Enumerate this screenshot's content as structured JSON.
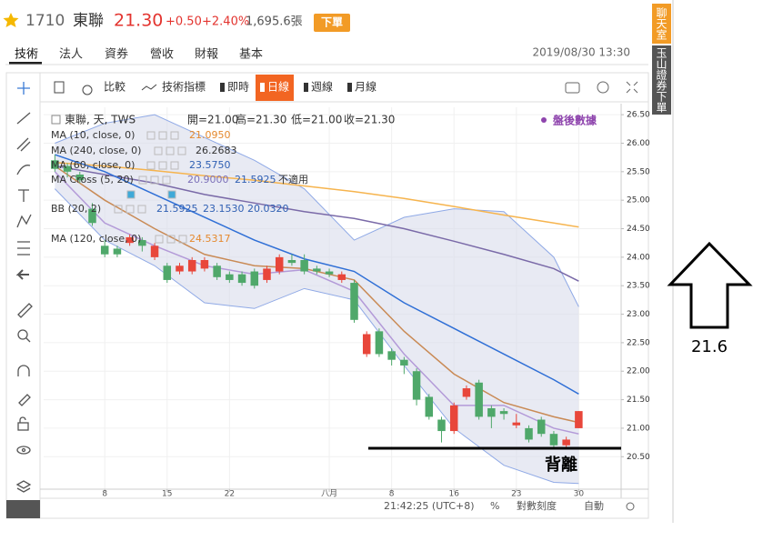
{
  "header": {
    "code": "1710",
    "name": "東聯",
    "price": "21.30",
    "change": "+0.50",
    "change_pct": "+2.40%",
    "volume": "1,695.6張",
    "order_button": "下單"
  },
  "tabs": [
    "技術",
    "法人",
    "資券",
    "營收",
    "財報",
    "基本"
  ],
  "timestamp": "2019/08/30 13:30",
  "toolbar": [
    "比較",
    "技術指標",
    "即時",
    "日線",
    "週線",
    "月線"
  ],
  "side_tabs": [
    "聊天室",
    "玉山證券下單"
  ],
  "status_bar": {
    "time": "21:42:25 (UTC+8)",
    "percent": "%",
    "log": "對數刻度",
    "auto": "自動"
  },
  "chart_data": {
    "type": "candlestick",
    "legend_title": "東聯, 天, TWS",
    "ohlc_labels": [
      "開=21.00",
      "高=21.30",
      "低=21.00",
      "收=21.30"
    ],
    "watermark": "盤後數據",
    "indicators": [
      {
        "label": "MA (10, close, 0)",
        "values": [
          "21.0950"
        ]
      },
      {
        "label": "MA (240, close, 0)",
        "values": [
          "26.2683"
        ]
      },
      {
        "label": "MA (60, close, 0)",
        "values": [
          "23.5750"
        ]
      },
      {
        "label": "MA Cross (5, 20)",
        "values": [
          "20.9000",
          "21.5925",
          "不適用"
        ]
      },
      {
        "label": "BB (20, 2)",
        "values": [
          "21.5925",
          "23.1530",
          "20.0320"
        ]
      },
      {
        "label": "MA (120, close, 0)",
        "values": [
          "24.5317"
        ]
      }
    ],
    "annotations": [
      "21.6",
      "背離"
    ],
    "up_color": "#e8463a",
    "down_color": "#4fa86a",
    "open": [
      25.7,
      25.6,
      25.45,
      24.85,
      24.2,
      24.15,
      24.25,
      24.3,
      24.0,
      23.85,
      23.75,
      23.75,
      23.8,
      23.85,
      23.7,
      23.7,
      23.75,
      23.6,
      23.75,
      23.95,
      23.95,
      23.8,
      23.75,
      23.6,
      23.55,
      22.3,
      22.7,
      22.35,
      22.2,
      22.0,
      21.55,
      21.15,
      20.95,
      21.55,
      21.8,
      21.35,
      21.3,
      21.05,
      21.0,
      21.15,
      20.9,
      20.7,
      21.0
    ],
    "high": [
      25.8,
      25.65,
      25.5,
      24.95,
      24.3,
      24.2,
      24.4,
      24.35,
      24.25,
      23.9,
      23.9,
      24.0,
      24.0,
      23.9,
      23.75,
      23.75,
      23.8,
      23.85,
      24.05,
      24.05,
      24.05,
      23.85,
      23.8,
      23.75,
      23.6,
      22.7,
      22.75,
      22.4,
      22.25,
      22.05,
      21.6,
      21.2,
      21.45,
      21.75,
      21.85,
      21.4,
      21.35,
      21.25,
      21.05,
      21.2,
      20.95,
      20.85,
      21.3
    ],
    "low": [
      25.5,
      25.4,
      25.3,
      24.55,
      24.0,
      24.0,
      24.2,
      24.1,
      23.95,
      23.55,
      23.7,
      23.7,
      23.75,
      23.6,
      23.55,
      23.5,
      23.45,
      23.55,
      23.7,
      23.85,
      23.7,
      23.7,
      23.65,
      23.55,
      22.85,
      22.25,
      22.25,
      22.1,
      21.95,
      21.4,
      21.15,
      20.75,
      20.9,
      21.5,
      21.15,
      21.0,
      21.15,
      21.0,
      20.75,
      20.85,
      20.65,
      20.65,
      21.0
    ],
    "close": [
      25.55,
      25.5,
      25.35,
      24.6,
      24.05,
      24.05,
      24.35,
      24.2,
      24.2,
      23.6,
      23.85,
      23.95,
      23.95,
      23.65,
      23.6,
      23.55,
      23.5,
      23.8,
      24.0,
      23.9,
      23.75,
      23.75,
      23.7,
      23.7,
      22.9,
      22.65,
      22.3,
      22.2,
      22.1,
      21.5,
      21.2,
      20.95,
      21.4,
      21.7,
      21.2,
      21.2,
      21.25,
      21.1,
      20.8,
      20.9,
      20.7,
      20.8,
      21.3
    ],
    "series": [
      {
        "color": "#f6b44e",
        "x": [
          0,
          4,
          8,
          12,
          16,
          20,
          24,
          28,
          32,
          36,
          40,
          42
        ],
        "values": [
          25.66,
          25.6,
          25.52,
          25.43,
          25.35,
          25.25,
          25.15,
          25.03,
          24.89,
          24.74,
          24.6,
          24.53
        ]
      },
      {
        "color": "#7a6aa8",
        "x": [
          0,
          4,
          8,
          12,
          16,
          20,
          24,
          28,
          32,
          36,
          40,
          42
        ],
        "values": [
          25.6,
          25.45,
          25.3,
          25.1,
          24.95,
          24.8,
          24.68,
          24.5,
          24.28,
          24.05,
          23.8,
          23.58
        ]
      },
      {
        "color": "#2f6fd6",
        "x": [
          0,
          4,
          8,
          12,
          16,
          20,
          24,
          28,
          32,
          36,
          40,
          42
        ],
        "values": [
          25.8,
          25.5,
          25.1,
          24.7,
          24.3,
          23.97,
          23.75,
          23.2,
          22.75,
          22.3,
          21.85,
          21.6
        ]
      },
      {
        "color": "#c98a55",
        "x": [
          0,
          4,
          8,
          12,
          16,
          20,
          24,
          28,
          32,
          36,
          40,
          42
        ],
        "values": [
          25.6,
          25.0,
          24.5,
          24.05,
          23.85,
          23.8,
          23.6,
          22.7,
          21.95,
          21.45,
          21.2,
          21.1
        ]
      },
      {
        "color": "#b39ad8",
        "x": [
          0,
          4,
          8,
          12,
          16,
          20,
          24,
          28,
          32,
          36,
          40,
          42
        ],
        "values": [
          25.5,
          24.6,
          24.2,
          23.85,
          23.7,
          23.78,
          23.4,
          22.3,
          21.4,
          21.4,
          21.0,
          20.9
        ]
      }
    ],
    "bollinger": {
      "color": "#8fa9e6",
      "fill": "#d9dceb",
      "x": [
        0,
        4,
        8,
        12,
        16,
        20,
        24,
        28,
        32,
        36,
        40,
        42
      ],
      "upper": [
        26.0,
        26.35,
        26.5,
        26.1,
        25.7,
        25.2,
        24.3,
        24.7,
        24.85,
        24.8,
        24.0,
        23.13
      ],
      "lower": [
        25.2,
        24.3,
        23.85,
        23.2,
        23.1,
        23.45,
        23.25,
        22.1,
        21.0,
        20.35,
        20.05,
        20.03
      ]
    },
    "xlim": [
      -0.9,
      45.4
    ],
    "ylim": [
      19.93,
      26.63
    ],
    "xticks": [
      {
        "value": 4,
        "label": "8"
      },
      {
        "value": 9,
        "label": "15"
      },
      {
        "value": 14,
        "label": "22"
      },
      {
        "value": 22,
        "label": "八月"
      },
      {
        "value": 27,
        "label": "8"
      },
      {
        "value": 32,
        "label": "16"
      },
      {
        "value": 37,
        "label": "23"
      },
      {
        "value": 42,
        "label": "30"
      }
    ],
    "yticks": [
      {
        "value": 20.5,
        "label": "20.50"
      },
      {
        "value": 21,
        "label": "21.00"
      },
      {
        "value": 21.5,
        "label": "21.50"
      },
      {
        "value": 22,
        "label": "22.00"
      },
      {
        "value": 22.5,
        "label": "22.50"
      },
      {
        "value": 23,
        "label": "23.00"
      },
      {
        "value": 23.5,
        "label": "23.50"
      },
      {
        "value": 24,
        "label": "24.00"
      },
      {
        "value": 24.5,
        "label": "24.50"
      },
      {
        "value": 25,
        "label": "25.00"
      },
      {
        "value": 25.5,
        "label": "25.50"
      },
      {
        "value": 26,
        "label": "26.00"
      },
      {
        "value": 26.5,
        "label": "26.50"
      }
    ],
    "grid": true
  }
}
